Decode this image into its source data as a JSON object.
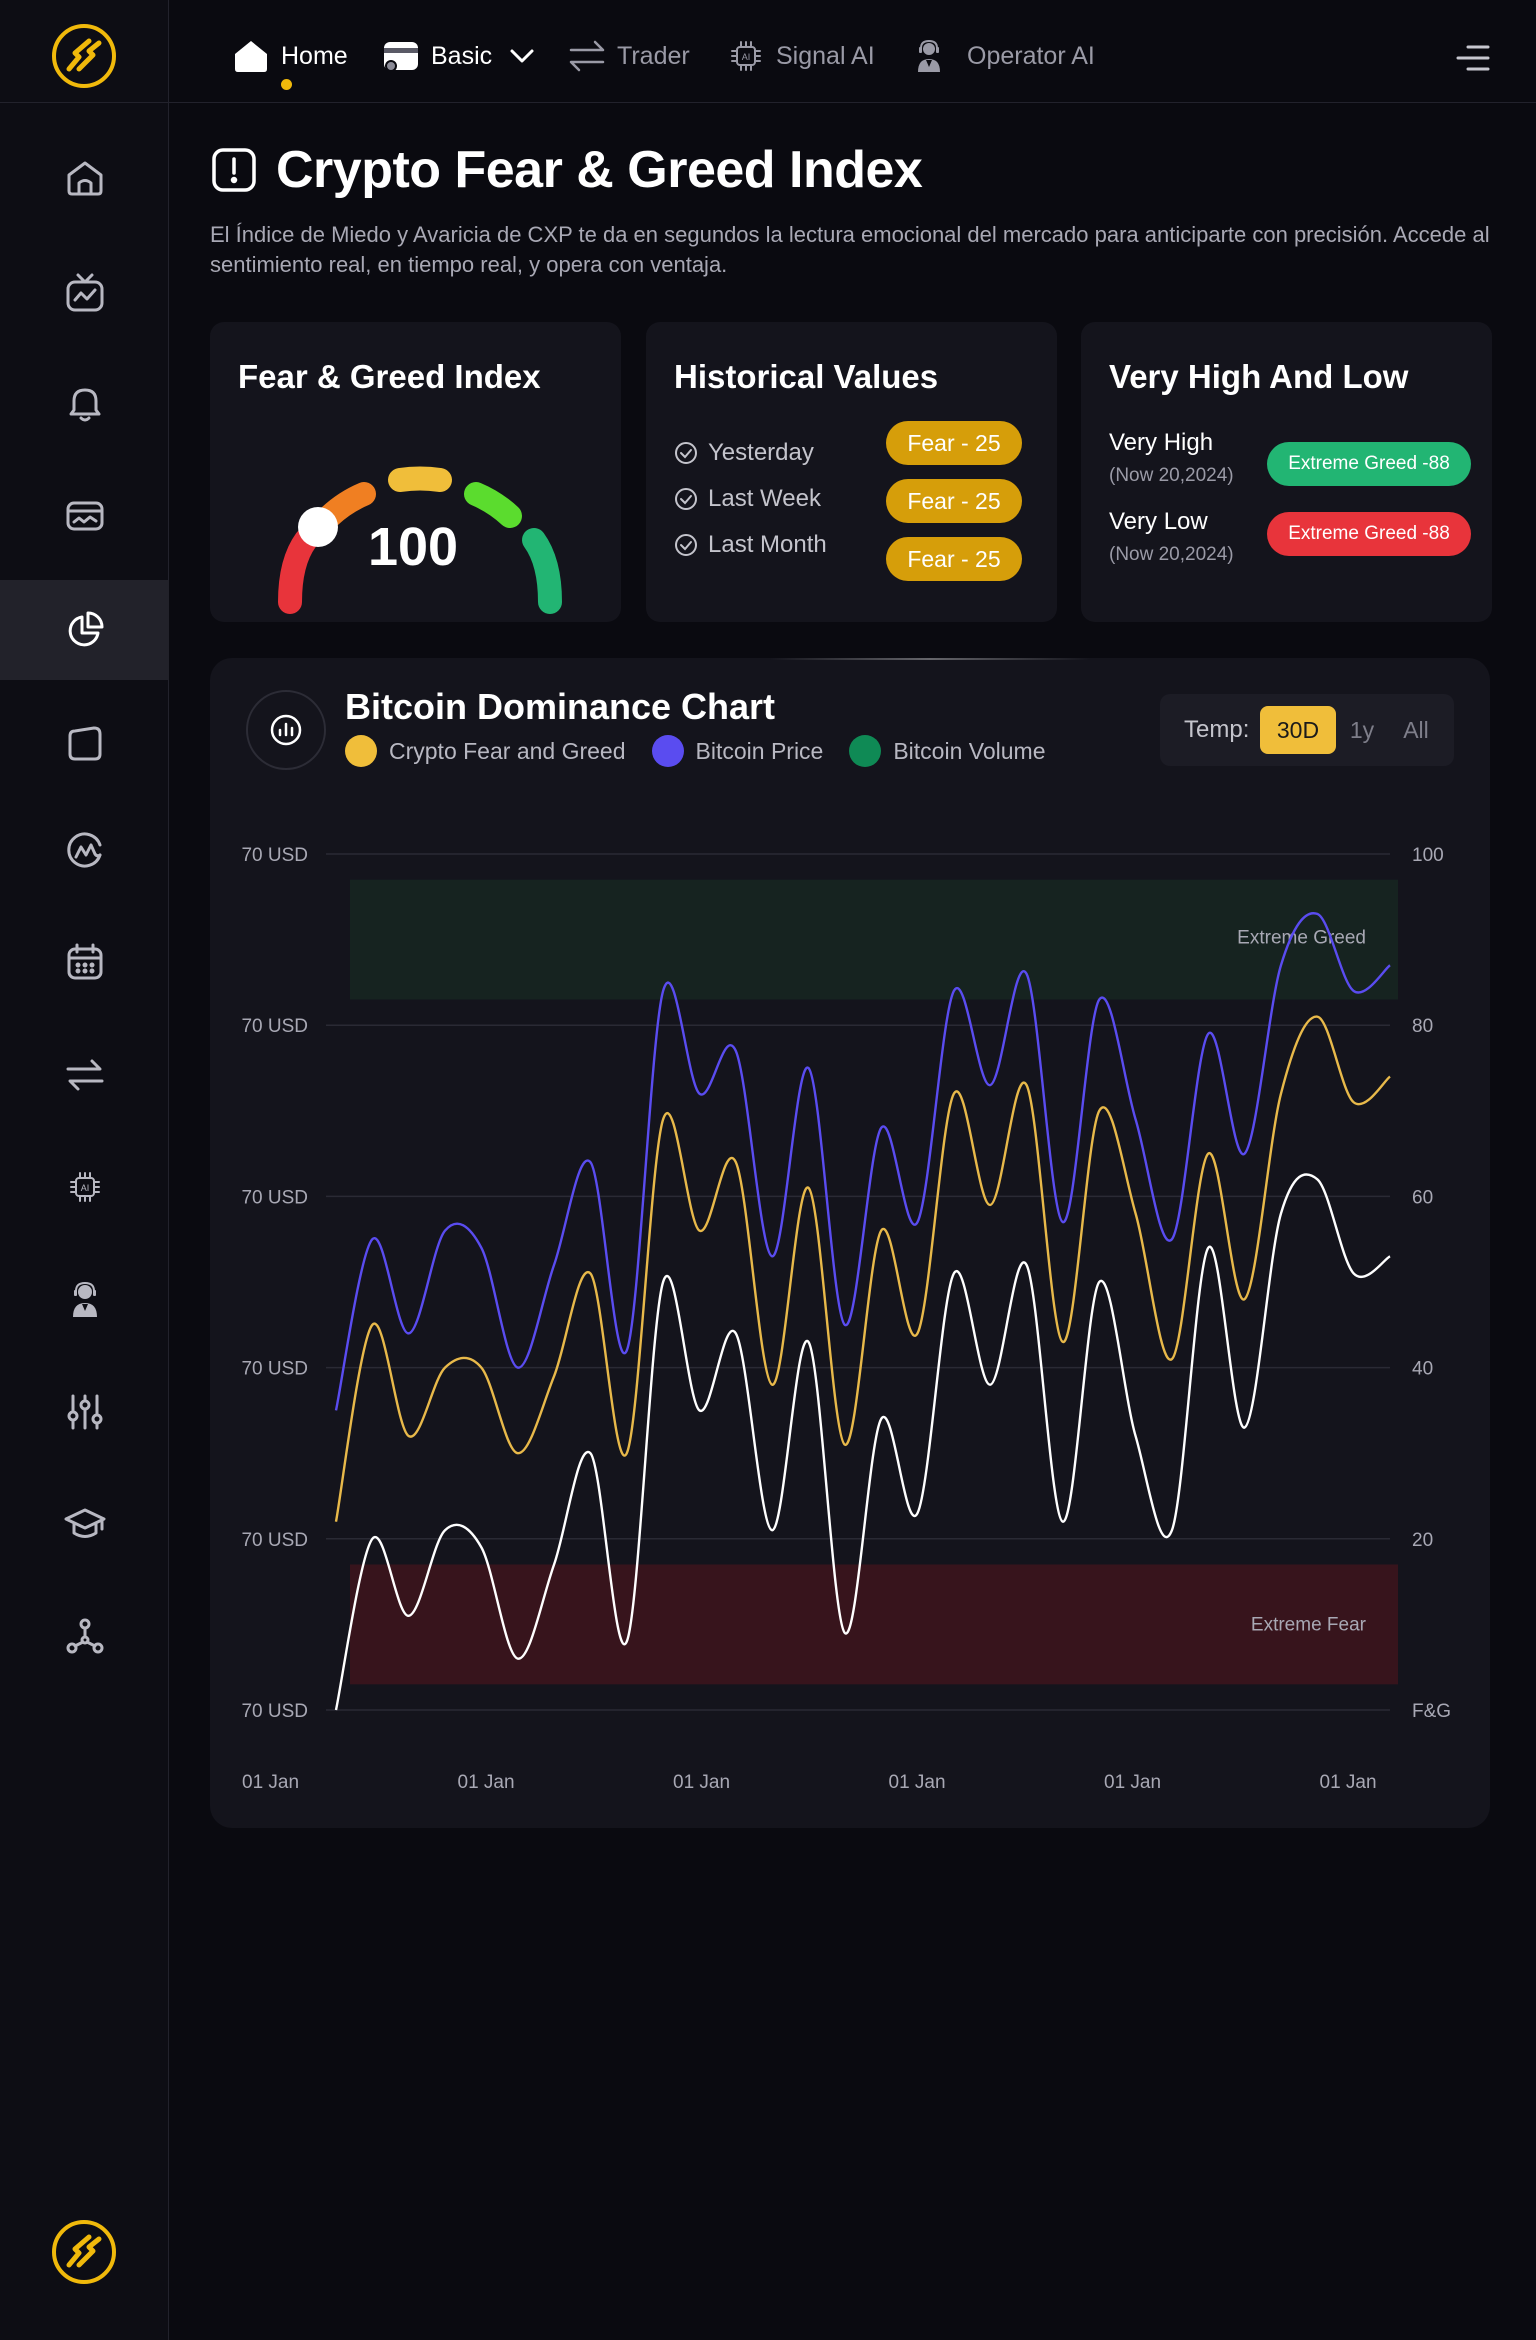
{
  "nav": {
    "home": "Home",
    "basic": "Basic",
    "trader": "Trader",
    "signal_ai": "Signal AI",
    "operator_ai": "Operator AI"
  },
  "sidebar": {
    "items": [
      "home-icon",
      "tv-chart-icon",
      "bell-icon",
      "wallet-icon",
      "pie-chart-icon",
      "folder-icon",
      "coinmarket-icon",
      "calendar-icon",
      "swap-icon",
      "ai-chip-icon",
      "operator-icon",
      "sliders-icon",
      "graduation-cap-icon",
      "network-icon"
    ],
    "active": "pie-chart-icon"
  },
  "page": {
    "title": "Crypto Fear & Greed Index",
    "description": "El Índice de Miedo y Avaricia de CXP te da en segundos la lectura emocional del mercado para anticiparte con precisión. Accede al sentimiento real, en tiempo real, y opera con ventaja."
  },
  "gauge_card": {
    "title": "Fear & Greed Index",
    "value": "100"
  },
  "historical": {
    "title": "Historical Values",
    "rows": [
      {
        "label": "Yesterday",
        "badge": "Fear - 25"
      },
      {
        "label": "Last Week",
        "badge": "Fear - 25"
      },
      {
        "label": "Last Month",
        "badge": "Fear - 25"
      }
    ]
  },
  "extremes": {
    "title": "Very High And Low",
    "high": {
      "label": "Very High",
      "date": "(Now 20,2024)",
      "badge": "Extreme Greed -88"
    },
    "low": {
      "label": "Very Low",
      "date": "(Now 20,2024)",
      "badge": "Extreme Greed -88"
    }
  },
  "chart": {
    "title": "Bitcoin Dominance Chart",
    "temp_label": "Temp:",
    "ranges": [
      "30D",
      "1y",
      "All"
    ],
    "active_range": "30D"
  },
  "colors": {
    "accent": "#f0be3a",
    "fear_badge": "#d69e0a",
    "greed_green": "#22b573",
    "low_red": "#e8343b",
    "btc_price": "#5a4cf0",
    "volume": "#0f8a55"
  },
  "chart_data": {
    "type": "line",
    "title": "Bitcoin Dominance Chart",
    "legend": [
      "Crypto Fear and Greed",
      "Bitcoin Price",
      "Bitcoin Volume"
    ],
    "series_colors": [
      "#f0be3a",
      "#5a4cf0",
      "#0f8a55"
    ],
    "y_left_ticks": [
      "70 USD",
      "70 USD",
      "70 USD",
      "70 USD",
      "70 USD",
      "70 USD"
    ],
    "y_right_ticks": [
      "100",
      "80",
      "60",
      "40",
      "20",
      "F&G"
    ],
    "x_ticks": [
      "01 Jan",
      "01 Jan",
      "01 Jan",
      "01 Jan",
      "01 Jan",
      "01 Jan"
    ],
    "ylim": [
      0,
      100
    ],
    "zones": [
      {
        "label": "Extreme Greed",
        "from": 83,
        "to": 97
      },
      {
        "label": "Extreme Fear",
        "from": 3,
        "to": 17
      }
    ],
    "series": [
      {
        "name": "Crypto Fear and Greed",
        "values": [
          22,
          45,
          32,
          40,
          40,
          30,
          39,
          51,
          30,
          69,
          56,
          64,
          38,
          61,
          31,
          56,
          44,
          72,
          59,
          73,
          43,
          70,
          58,
          41,
          65,
          48,
          72,
          81,
          71,
          74
        ]
      },
      {
        "name": "Bitcoin Price",
        "values": [
          35,
          55,
          44,
          56,
          54,
          40,
          52,
          64,
          42,
          84,
          72,
          77,
          53,
          75,
          45,
          68,
          57,
          84,
          73,
          86,
          57,
          83,
          69,
          55,
          79,
          65,
          87,
          93,
          84,
          87
        ]
      },
      {
        "name": "Bitcoin Volume",
        "values": [
          0,
          20,
          11,
          21,
          19,
          6,
          17,
          30,
          8,
          50,
          35,
          44,
          21,
          43,
          9,
          34,
          23,
          51,
          38,
          52,
          22,
          50,
          32,
          21,
          54,
          33,
          58,
          62,
          51,
          53
        ]
      }
    ]
  }
}
